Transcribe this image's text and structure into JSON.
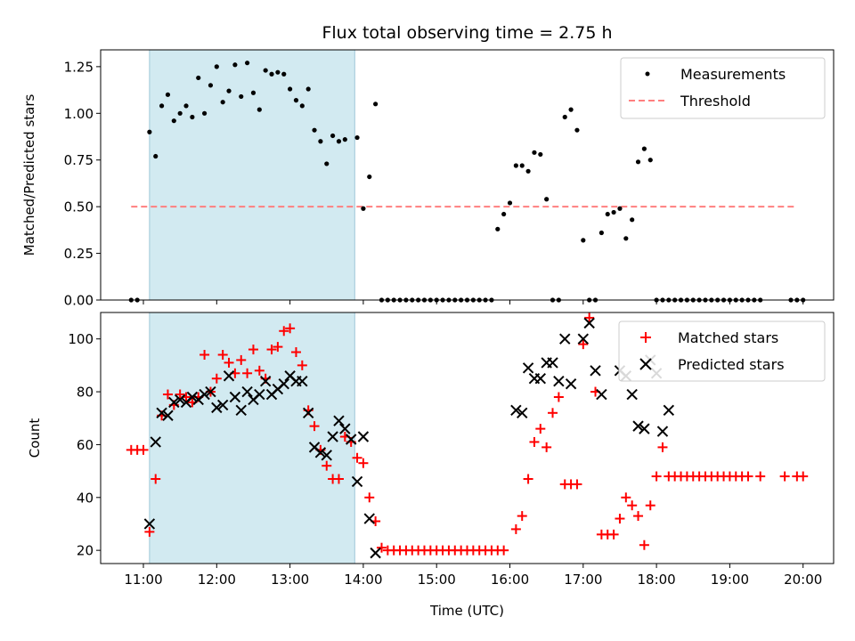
{
  "chart_data": [
    {
      "type": "scatter",
      "title": "Flux total observing time = 2.75 h",
      "xlabel": "",
      "ylabel": "Matched/Predicted stars",
      "xlim": [
        "10:25",
        "20:25"
      ],
      "ylim": [
        0,
        1.34
      ],
      "y_ticks": [
        "0.00",
        "0.25",
        "0.50",
        "0.75",
        "1.00",
        "1.25"
      ],
      "shaded_interval": [
        "11:05",
        "13:53"
      ],
      "legend_position": "top-right",
      "colors": {
        "measurements": "#000000",
        "threshold": "#ff7f7f",
        "shade": "#add8e6"
      },
      "series": [
        {
          "name": "Measurements",
          "marker": "dot",
          "x": [
            "10:50",
            "10:55",
            "11:05",
            "11:10",
            "11:15",
            "11:20",
            "11:25",
            "11:30",
            "11:35",
            "11:40",
            "11:45",
            "11:50",
            "11:55",
            "12:00",
            "12:05",
            "12:10",
            "12:15",
            "12:20",
            "12:25",
            "12:30",
            "12:35",
            "12:40",
            "12:45",
            "12:50",
            "12:55",
            "13:00",
            "13:05",
            "13:10",
            "13:15",
            "13:20",
            "13:25",
            "13:30",
            "13:35",
            "13:40",
            "13:45",
            "13:55",
            "14:00",
            "14:05",
            "14:10",
            "14:15",
            "14:20",
            "14:25",
            "14:30",
            "14:35",
            "14:40",
            "14:45",
            "14:50",
            "14:55",
            "15:00",
            "15:05",
            "15:10",
            "15:15",
            "15:20",
            "15:25",
            "15:30",
            "15:35",
            "15:40",
            "15:45",
            "15:50",
            "15:55",
            "16:00",
            "16:05",
            "16:10",
            "16:15",
            "16:20",
            "16:25",
            "16:30",
            "16:35",
            "16:40",
            "16:45",
            "16:50",
            "16:55",
            "17:00",
            "17:05",
            "17:10",
            "17:15",
            "17:20",
            "17:25",
            "17:30",
            "17:35",
            "17:40",
            "17:45",
            "17:50",
            "17:55",
            "18:00",
            "18:05",
            "18:10",
            "18:15",
            "18:20",
            "18:25",
            "18:30",
            "18:35",
            "18:40",
            "18:45",
            "18:50",
            "18:55",
            "19:00",
            "19:05",
            "19:10",
            "19:15",
            "19:20",
            "19:25",
            "19:50",
            "19:55",
            "20:00"
          ],
          "y": [
            0.0,
            0.0,
            0.9,
            0.77,
            1.04,
            1.1,
            0.96,
            1.0,
            1.04,
            0.98,
            1.19,
            1.0,
            1.15,
            1.25,
            1.06,
            1.12,
            1.26,
            1.09,
            1.27,
            1.11,
            1.02,
            1.23,
            1.21,
            1.22,
            1.21,
            1.13,
            1.07,
            1.04,
            1.13,
            0.91,
            0.85,
            0.73,
            0.88,
            0.85,
            0.86,
            0.87,
            0.49,
            0.66,
            1.05,
            0.0,
            0.0,
            0.0,
            0.0,
            0.0,
            0.0,
            0.0,
            0.0,
            0.0,
            0.0,
            0.0,
            0.0,
            0.0,
            0.0,
            0.0,
            0.0,
            0.0,
            0.0,
            0.0,
            0.38,
            0.46,
            0.52,
            0.72,
            0.72,
            0.69,
            0.79,
            0.78,
            0.54,
            0.0,
            0.0,
            0.98,
            1.02,
            0.91,
            0.32,
            0.0,
            0.0,
            0.36,
            0.46,
            0.47,
            0.49,
            0.33,
            0.43,
            0.74,
            0.81,
            0.75,
            0.0,
            0.0,
            0.0,
            0.0,
            0.0,
            0.0,
            0.0,
            0.0,
            0.0,
            0.0,
            0.0,
            0.0,
            0.0,
            0.0,
            0.0,
            0.0,
            0.0,
            0.0,
            0.0,
            0.0,
            0.0
          ]
        },
        {
          "name": "Threshold",
          "style": "dashed",
          "x": [
            "10:50",
            "19:55"
          ],
          "y": [
            0.5,
            0.5
          ]
        }
      ]
    },
    {
      "type": "scatter",
      "title": "",
      "xlabel": "Time (UTC)",
      "ylabel": "Count",
      "xlim": [
        "10:25",
        "20:25"
      ],
      "ylim": [
        15,
        110
      ],
      "y_ticks": [
        "20",
        "40",
        "60",
        "80",
        "100"
      ],
      "x_ticks": [
        "11:00",
        "12:00",
        "13:00",
        "14:00",
        "15:00",
        "16:00",
        "17:00",
        "18:00",
        "19:00",
        "20:00"
      ],
      "shaded_interval": [
        "11:05",
        "13:53"
      ],
      "legend_position": "top-right",
      "colors": {
        "matched": "#ff0000",
        "predicted": "#000000",
        "shade": "#add8e6"
      },
      "series": [
        {
          "name": "Matched stars",
          "marker": "plus",
          "x": [
            "10:50",
            "10:55",
            "11:00",
            "11:05",
            "11:10",
            "11:15",
            "11:20",
            "11:25",
            "11:30",
            "11:35",
            "11:40",
            "11:45",
            "11:50",
            "11:55",
            "12:00",
            "12:05",
            "12:10",
            "12:15",
            "12:20",
            "12:25",
            "12:30",
            "12:35",
            "12:40",
            "12:45",
            "12:50",
            "12:55",
            "13:00",
            "13:05",
            "13:10",
            "13:15",
            "13:20",
            "13:25",
            "13:30",
            "13:35",
            "13:40",
            "13:45",
            "13:50",
            "13:55",
            "14:00",
            "14:05",
            "14:10",
            "14:15",
            "14:20",
            "14:25",
            "14:30",
            "14:35",
            "14:40",
            "14:45",
            "14:50",
            "14:55",
            "15:00",
            "15:05",
            "15:10",
            "15:15",
            "15:20",
            "15:25",
            "15:30",
            "15:35",
            "15:40",
            "15:45",
            "15:50",
            "15:55",
            "16:05",
            "16:10",
            "16:15",
            "16:20",
            "16:25",
            "16:30",
            "16:35",
            "16:40",
            "16:45",
            "16:50",
            "16:55",
            "17:00",
            "17:05",
            "17:10",
            "17:15",
            "17:20",
            "17:25",
            "17:30",
            "17:35",
            "17:40",
            "17:45",
            "17:50",
            "17:55",
            "18:00",
            "18:05",
            "18:10",
            "18:15",
            "18:20",
            "18:25",
            "18:30",
            "18:35",
            "18:40",
            "18:45",
            "18:50",
            "18:55",
            "19:00",
            "19:05",
            "19:10",
            "19:15",
            "19:25",
            "19:45",
            "19:55",
            "20:00"
          ],
          "y": [
            58,
            58,
            58,
            27,
            47,
            71,
            79,
            75,
            79,
            78,
            76,
            78,
            94,
            80,
            85,
            94,
            91,
            87,
            92,
            87,
            96,
            88,
            85,
            96,
            97,
            103,
            104,
            95,
            90,
            73,
            67,
            58,
            52,
            47,
            47,
            63,
            61,
            55,
            53,
            40,
            31,
            21,
            20,
            20,
            20,
            20,
            20,
            20,
            20,
            20,
            20,
            20,
            20,
            20,
            20,
            20,
            20,
            20,
            20,
            20,
            20,
            20,
            28,
            33,
            47,
            61,
            66,
            59,
            72,
            78,
            45,
            45,
            45,
            98,
            108,
            80,
            26,
            26,
            26,
            32,
            40,
            37,
            33,
            22,
            37,
            48,
            59,
            48,
            48,
            48,
            48,
            48,
            48,
            48,
            48,
            48,
            48,
            48,
            48,
            48,
            48,
            48,
            48,
            48,
            48
          ]
        },
        {
          "name": "Predicted stars",
          "marker": "x",
          "x": [
            "11:05",
            "11:10",
            "11:15",
            "11:20",
            "11:25",
            "11:30",
            "11:35",
            "11:40",
            "11:45",
            "11:50",
            "11:55",
            "12:00",
            "12:05",
            "12:10",
            "12:15",
            "12:20",
            "12:25",
            "12:30",
            "12:35",
            "12:40",
            "12:45",
            "12:50",
            "12:55",
            "13:00",
            "13:05",
            "13:10",
            "13:15",
            "13:20",
            "13:25",
            "13:30",
            "13:35",
            "13:40",
            "13:45",
            "13:50",
            "13:55",
            "14:00",
            "14:05",
            "14:10",
            "16:05",
            "16:10",
            "16:15",
            "16:20",
            "16:25",
            "16:30",
            "16:35",
            "16:40",
            "16:45",
            "16:50",
            "17:00",
            "17:05",
            "17:10",
            "17:15",
            "17:30",
            "17:35",
            "17:40",
            "17:45",
            "17:50",
            "17:55",
            "18:00",
            "18:05",
            "18:10"
          ],
          "y": [
            30,
            61,
            72,
            71,
            76,
            77,
            76,
            78,
            77,
            79,
            80,
            74,
            75,
            86,
            78,
            73,
            80,
            77,
            79,
            84,
            79,
            81,
            83,
            86,
            84,
            84,
            72,
            59,
            57,
            56,
            63,
            69,
            66,
            62,
            46,
            63,
            32,
            19,
            73,
            72,
            89,
            85,
            85,
            91,
            91,
            84,
            100,
            83,
            100,
            106,
            88,
            79,
            88,
            86,
            79,
            67,
            66,
            92,
            87,
            65,
            73
          ]
        }
      ]
    }
  ]
}
